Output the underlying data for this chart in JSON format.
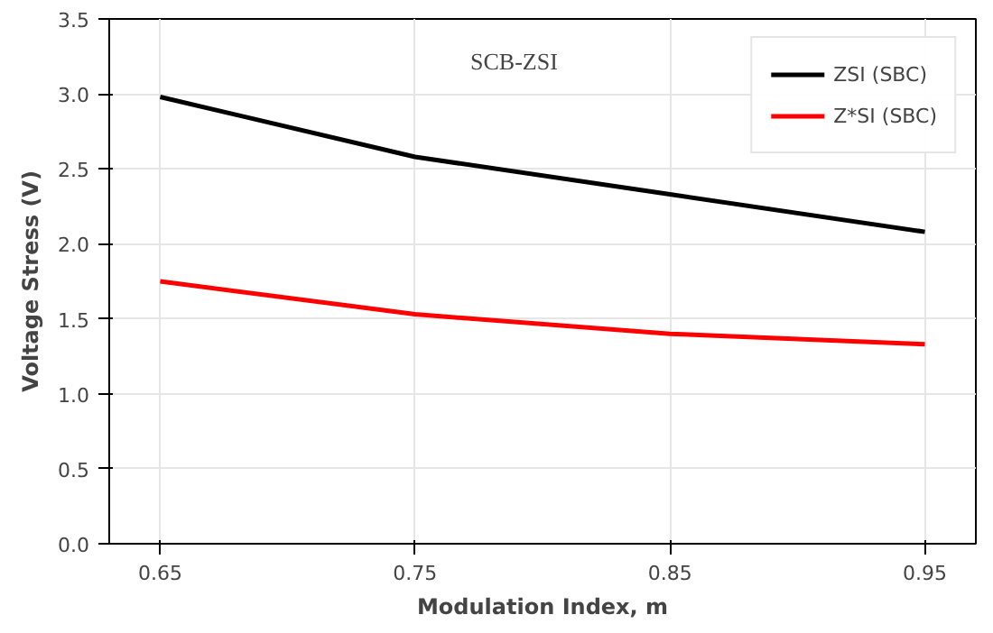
{
  "chart_data": {
    "type": "line",
    "xlabel": "Modulation Index, m",
    "ylabel": "Voltage Stress (V)",
    "x": [
      0.65,
      0.75,
      0.85,
      0.95
    ],
    "series": [
      {
        "name": "ZSI (SBC)",
        "color": "#000000",
        "values": [
          2.98,
          2.58,
          2.33,
          2.08
        ]
      },
      {
        "name": "Z*SI (SBC)",
        "color": "#ff0000",
        "values": [
          1.75,
          1.53,
          1.4,
          1.33
        ]
      }
    ],
    "xlim": [
      0.63,
      0.97
    ],
    "ylim": [
      0,
      3.5
    ],
    "xticks": [
      0.65,
      0.75,
      0.85,
      0.95
    ],
    "yticks": [
      {
        "value": 0,
        "label": "0.0"
      },
      0.5,
      {
        "value": 1,
        "label": "1.0"
      },
      1.5,
      {
        "value": 2,
        "label": "2.0"
      },
      2.5,
      {
        "value": 3,
        "label": "3.0"
      },
      3.5
    ],
    "annotations": [
      "SCB-ZSI"
    ],
    "grid": true,
    "legend": "top right",
    "marker": "none",
    "line_style": "solid"
  }
}
